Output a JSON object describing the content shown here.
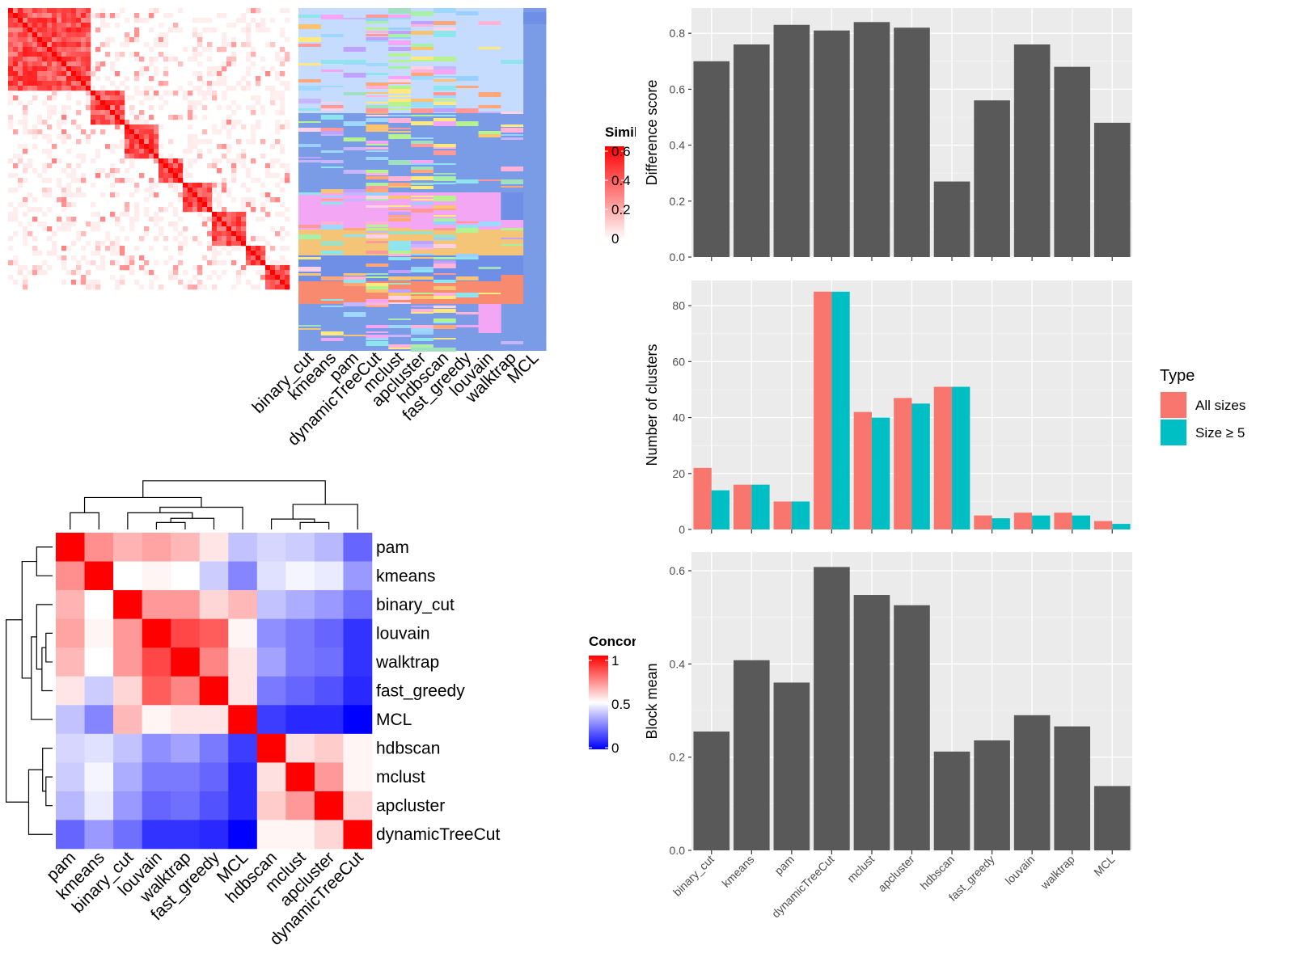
{
  "chart_data": [
    {
      "type": "heatmap",
      "legend_title": "Similarity",
      "legend_ticks": [
        "0",
        "0.2",
        "0.4",
        "0.6"
      ],
      "method_labels": [
        "binary_cut",
        "kmeans",
        "pam",
        "dynamicTreeCut",
        "mclust",
        "apcluster",
        "hdbscan",
        "fast_greedy",
        "louvain",
        "walktrap",
        "MCL"
      ],
      "colors": {
        "low": "#ffffff",
        "high": "#ff0000"
      }
    },
    {
      "type": "heatmap",
      "legend_title": "Concordance",
      "legend_ticks": [
        "0",
        "0.5",
        "1"
      ],
      "rows": [
        "pam",
        "kmeans",
        "binary_cut",
        "louvain",
        "walktrap",
        "fast_greedy",
        "MCL",
        "hdbscan",
        "mclust",
        "apcluster",
        "dynamicTreeCut"
      ],
      "columns": [
        "pam",
        "kmeans",
        "binary_cut",
        "louvain",
        "walktrap",
        "fast_greedy",
        "MCL",
        "hdbscan",
        "mclust",
        "apcluster",
        "dynamicTreeCut"
      ],
      "values": [
        [
          1.0,
          0.72,
          0.65,
          0.68,
          0.64,
          0.55,
          0.38,
          0.42,
          0.4,
          0.36,
          0.2
        ],
        [
          0.72,
          1.0,
          0.5,
          0.52,
          0.5,
          0.4,
          0.26,
          0.44,
          0.48,
          0.46,
          0.3
        ],
        [
          0.65,
          0.5,
          1.0,
          0.7,
          0.7,
          0.58,
          0.64,
          0.38,
          0.34,
          0.3,
          0.22
        ],
        [
          0.68,
          0.52,
          0.7,
          1.0,
          0.86,
          0.82,
          0.52,
          0.28,
          0.24,
          0.2,
          0.1
        ],
        [
          0.64,
          0.5,
          0.7,
          0.86,
          1.0,
          0.74,
          0.55,
          0.32,
          0.24,
          0.22,
          0.1
        ],
        [
          0.55,
          0.4,
          0.58,
          0.82,
          0.74,
          1.0,
          0.55,
          0.24,
          0.2,
          0.16,
          0.08
        ],
        [
          0.38,
          0.26,
          0.64,
          0.52,
          0.55,
          0.55,
          1.0,
          0.12,
          0.08,
          0.08,
          0.0
        ],
        [
          0.42,
          0.44,
          0.38,
          0.28,
          0.32,
          0.24,
          0.12,
          1.0,
          0.56,
          0.6,
          0.52
        ],
        [
          0.4,
          0.48,
          0.34,
          0.24,
          0.24,
          0.2,
          0.08,
          0.56,
          1.0,
          0.7,
          0.52
        ],
        [
          0.36,
          0.46,
          0.3,
          0.2,
          0.22,
          0.16,
          0.08,
          0.6,
          0.7,
          1.0,
          0.58
        ],
        [
          0.2,
          0.3,
          0.22,
          0.1,
          0.1,
          0.08,
          0.0,
          0.52,
          0.52,
          0.58,
          1.0
        ]
      ],
      "colors": {
        "low": "#0000ff",
        "mid": "#ffffff",
        "high": "#ff0000"
      }
    },
    {
      "type": "bar",
      "categories": [
        "binary_cut",
        "kmeans",
        "pam",
        "dynamicTreeCut",
        "mclust",
        "apcluster",
        "hdbscan",
        "fast_greedy",
        "louvain",
        "walktrap",
        "MCL"
      ],
      "values": [
        0.7,
        0.76,
        0.83,
        0.81,
        0.84,
        0.82,
        0.27,
        0.56,
        0.76,
        0.68,
        0.48
      ],
      "ylabel": "Difference score",
      "ylim": [
        0,
        0.89
      ],
      "yticks": [
        "0.0",
        "0.2",
        "0.4",
        "0.6",
        "0.8"
      ],
      "bar_color": "#595959"
    },
    {
      "type": "bar",
      "categories": [
        "binary_cut",
        "kmeans",
        "pam",
        "dynamicTreeCut",
        "mclust",
        "apcluster",
        "hdbscan",
        "fast_greedy",
        "louvain",
        "walktrap",
        "MCL"
      ],
      "series": [
        {
          "name": "All sizes",
          "color": "#f8766d",
          "values": [
            22,
            16,
            10,
            85,
            42,
            47,
            51,
            5,
            6,
            6,
            3
          ]
        },
        {
          "name": "Size ≥ 5",
          "color": "#00bfc4",
          "values": [
            14,
            16,
            10,
            85,
            40,
            45,
            51,
            4,
            5,
            5,
            2
          ]
        }
      ],
      "ylabel": "Number of clusters",
      "ylim": [
        0,
        89
      ],
      "yticks": [
        "0",
        "20",
        "40",
        "60",
        "80"
      ],
      "legend_title": "Type",
      "legend_position": "right"
    },
    {
      "type": "bar",
      "categories": [
        "binary_cut",
        "kmeans",
        "pam",
        "dynamicTreeCut",
        "mclust",
        "apcluster",
        "hdbscan",
        "fast_greedy",
        "louvain",
        "walktrap",
        "MCL"
      ],
      "values": [
        0.255,
        0.408,
        0.36,
        0.608,
        0.548,
        0.526,
        0.212,
        0.236,
        0.29,
        0.266,
        0.138
      ],
      "ylabel": "Block mean",
      "ylim": [
        0,
        0.64
      ],
      "yticks": [
        "0.0",
        "0.2",
        "0.4",
        "0.6"
      ],
      "bar_color": "#595959"
    }
  ]
}
